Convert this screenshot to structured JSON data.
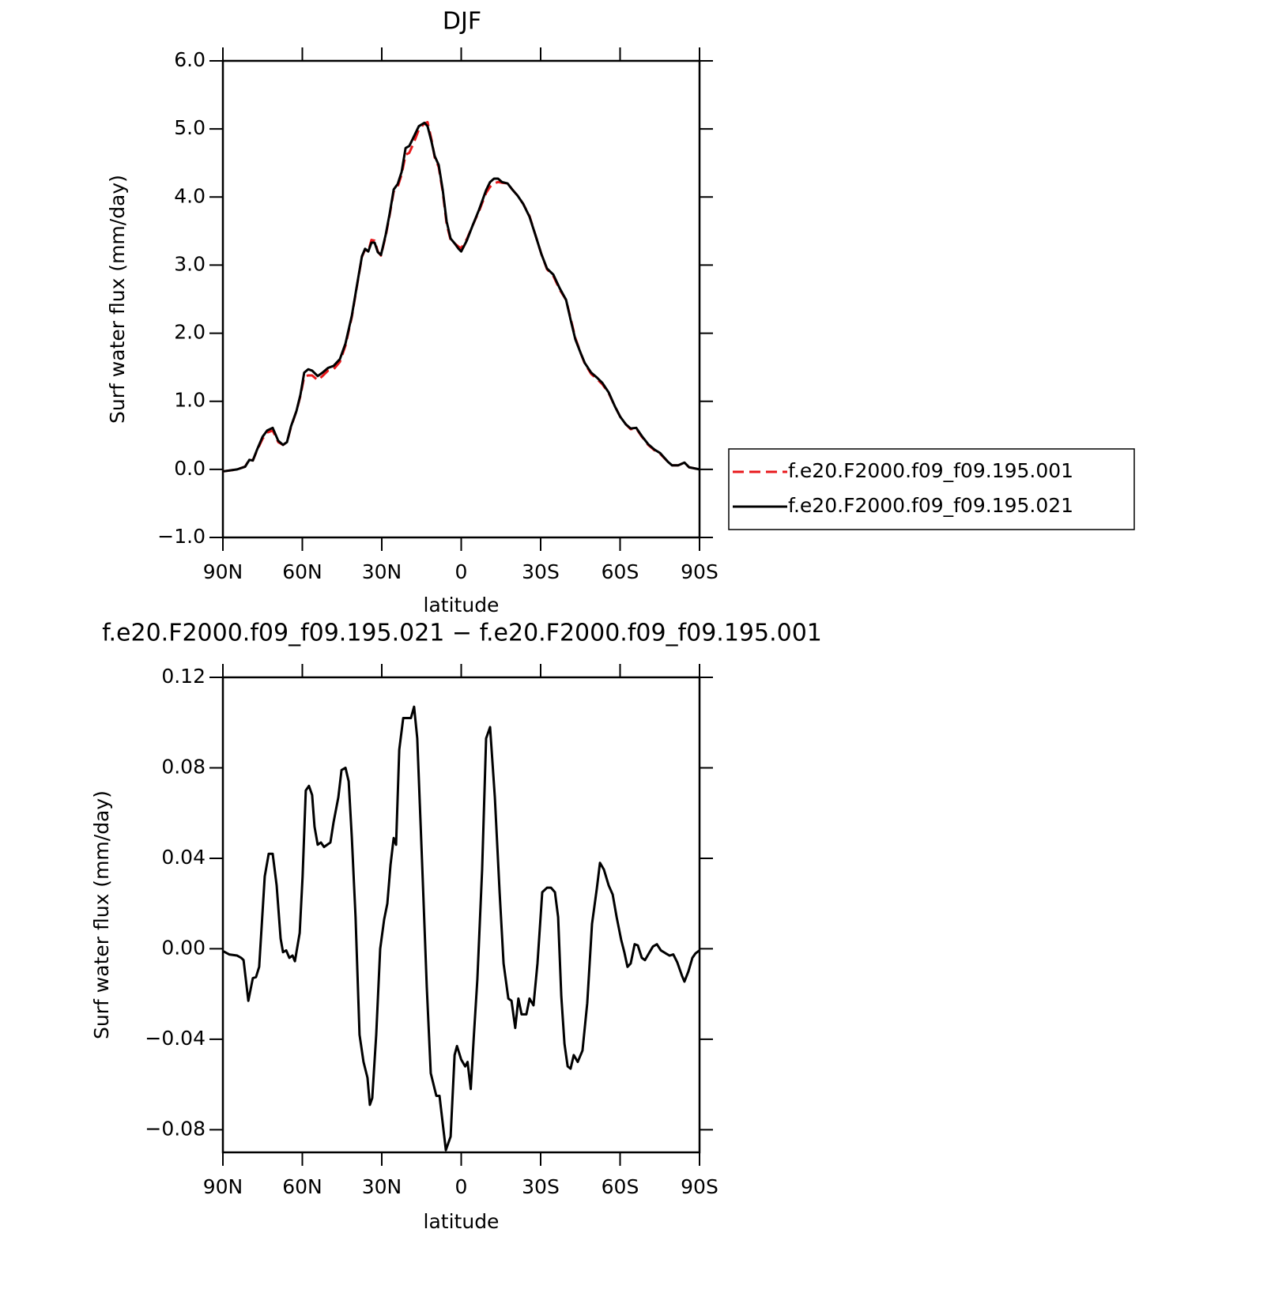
{
  "chart_data": [
    {
      "type": "line",
      "title": "DJF",
      "xlabel": "latitude",
      "ylabel": "Surf water flux (mm/day)",
      "xlim": [
        90,
        -90
      ],
      "xticks": [
        {
          "value": 90,
          "label": "90N"
        },
        {
          "value": 60,
          "label": "60N"
        },
        {
          "value": 30,
          "label": "30N"
        },
        0,
        {
          "value": -30,
          "label": "30S"
        },
        {
          "value": -60,
          "label": "60S"
        },
        {
          "value": -90,
          "label": "90S"
        }
      ],
      "ylim": [
        -1.0,
        6.0
      ],
      "yticks": [
        {
          "value": -1.0,
          "label": "−1.0"
        },
        {
          "value": 0.0,
          "label": "0.0"
        },
        {
          "value": 1.0,
          "label": "1.0"
        },
        {
          "value": 2.0,
          "label": "2.0"
        },
        {
          "value": 3.0,
          "label": "3.0"
        },
        {
          "value": 4.0,
          "label": "4.0"
        },
        {
          "value": 5.0,
          "label": "5.0"
        },
        {
          "value": 6.0,
          "label": "6.0"
        }
      ],
      "legend": "outside-right",
      "x": [
        90,
        84.6,
        81.6,
        80,
        78.7,
        77.2,
        75,
        73.3,
        71.2,
        69.1,
        67.3,
        65.8,
        64.3,
        62.2,
        60.7,
        59.3,
        57.8,
        56.3,
        54.2,
        52.4,
        50.3,
        48.2,
        45.8,
        43.7,
        41.3,
        39.3,
        37.5,
        36.3,
        35.1,
        33.9,
        32.7,
        31.5,
        30.3,
        28.5,
        27,
        25.5,
        24,
        22.5,
        21,
        19.6,
        18.1,
        16,
        13.9,
        12.7,
        11.2,
        10,
        8.5,
        7,
        5.5,
        4,
        2.5,
        1,
        0,
        -2.1,
        -4.3,
        -6.7,
        -9.4,
        -10.9,
        -12.4,
        -13.9,
        -15.4,
        -17.5,
        -19.3,
        -21.3,
        -23.4,
        -25.8,
        -28.2,
        -30.3,
        -32.4,
        -34.8,
        -37.2,
        -39.6,
        -41.3,
        -43.1,
        -45.2,
        -46.7,
        -49.1,
        -51.2,
        -53.3,
        -55.7,
        -58.1,
        -60.1,
        -62.2,
        -64,
        -66.1,
        -68.2,
        -70.6,
        -73,
        -75.1,
        -78.1,
        -79.6,
        -82,
        -84.3,
        -86.1,
        -90
      ],
      "series": [
        {
          "name": "f.e20.F2000.f09_f09.195.001",
          "color": "#e8191c",
          "linestyle": "dashed",
          "values": [
            -0.03,
            0.0,
            0.04,
            0.15,
            0.13,
            0.27,
            0.45,
            0.54,
            0.57,
            0.4,
            0.36,
            0.4,
            0.62,
            0.86,
            1.08,
            1.36,
            1.38,
            1.38,
            1.31,
            1.37,
            1.45,
            1.47,
            1.58,
            1.82,
            2.24,
            2.71,
            3.12,
            3.23,
            3.2,
            3.37,
            3.36,
            3.2,
            3.14,
            3.43,
            3.74,
            4.08,
            4.15,
            4.33,
            4.62,
            4.65,
            4.78,
            4.99,
            5.08,
            5.1,
            4.84,
            4.58,
            4.44,
            4.08,
            3.6,
            3.37,
            3.32,
            3.27,
            3.25,
            3.38,
            3.58,
            3.79,
            4.06,
            4.15,
            4.2,
            4.22,
            4.21,
            4.2,
            4.11,
            4.02,
            3.9,
            3.72,
            3.42,
            3.16,
            2.94,
            2.84,
            2.64,
            2.49,
            2.22,
            1.93,
            1.7,
            1.55,
            1.4,
            1.33,
            1.25,
            1.12,
            0.92,
            0.77,
            0.66,
            0.59,
            0.6,
            0.48,
            0.36,
            0.28,
            0.23,
            0.11,
            0.06,
            0.06,
            0.1,
            0.03,
            0.0
          ]
        },
        {
          "name": "f.e20.F2000.f09_f09.195.021",
          "color": "#000000",
          "linestyle": "solid",
          "values": [
            -0.03,
            0.0,
            0.04,
            0.14,
            0.13,
            0.28,
            0.48,
            0.57,
            0.61,
            0.42,
            0.36,
            0.4,
            0.63,
            0.86,
            1.1,
            1.42,
            1.47,
            1.45,
            1.37,
            1.42,
            1.49,
            1.52,
            1.62,
            1.85,
            2.26,
            2.72,
            3.13,
            3.24,
            3.2,
            3.33,
            3.33,
            3.19,
            3.15,
            3.45,
            3.76,
            4.11,
            4.19,
            4.37,
            4.72,
            4.75,
            4.87,
            5.04,
            5.09,
            5.04,
            4.81,
            4.6,
            4.47,
            4.11,
            3.64,
            3.39,
            3.32,
            3.24,
            3.2,
            3.36,
            3.58,
            3.81,
            4.1,
            4.22,
            4.27,
            4.27,
            4.22,
            4.2,
            4.11,
            4.02,
            3.9,
            3.71,
            3.42,
            3.16,
            2.95,
            2.86,
            2.66,
            2.49,
            2.2,
            1.91,
            1.7,
            1.56,
            1.42,
            1.35,
            1.27,
            1.13,
            0.92,
            0.77,
            0.66,
            0.6,
            0.61,
            0.49,
            0.37,
            0.29,
            0.24,
            0.11,
            0.06,
            0.06,
            0.1,
            0.03,
            0.0
          ]
        }
      ]
    },
    {
      "type": "line",
      "title": "f.e20.F2000.f09_f09.195.021 − f.e20.F2000.f09_f09.195.001",
      "xlabel": "latitude",
      "ylabel": "Surf water flux (mm/day)",
      "xlim": [
        90,
        -90
      ],
      "xticks": [
        {
          "value": 90,
          "label": "90N"
        },
        {
          "value": 60,
          "label": "60N"
        },
        {
          "value": 30,
          "label": "30N"
        },
        0,
        {
          "value": -30,
          "label": "30S"
        },
        {
          "value": -60,
          "label": "60S"
        },
        {
          "value": -90,
          "label": "90S"
        }
      ],
      "ylim": [
        -0.09,
        0.12
      ],
      "yticks": [
        {
          "value": -0.08,
          "label": "−0.08"
        },
        {
          "value": -0.04,
          "label": "−0.04"
        },
        {
          "value": 0.0,
          "label": "0.00"
        },
        {
          "value": 0.04,
          "label": "0.04"
        },
        {
          "value": 0.08,
          "label": "0.08"
        },
        {
          "value": 0.12,
          "label": "0.12"
        }
      ],
      "x": [
        90,
        87.6,
        84.6,
        83.1,
        82.2,
        80.4,
        78.7,
        77.5,
        76.3,
        74.2,
        72.7,
        71.2,
        69.7,
        68.2,
        67.3,
        66.1,
        64.9,
        63.7,
        62.8,
        61,
        59.9,
        58.7,
        57.5,
        56.3,
        55.4,
        54.2,
        53,
        51.8,
        50.6,
        49.4,
        48.2,
        46.4,
        45.2,
        43.7,
        42.5,
        41.3,
        39.9,
        38.4,
        36.9,
        35.4,
        34.5,
        33.6,
        32.1,
        30.6,
        29.1,
        27.9,
        26.7,
        25.5,
        24.6,
        23.4,
        21.9,
        20.4,
        19,
        17.8,
        16.6,
        14.8,
        13,
        11.5,
        9.4,
        8.2,
        6.4,
        5.8,
        4,
        2.5,
        1.6,
        0,
        -1.5,
        -2.4,
        -3.6,
        -4.8,
        -6.1,
        -7.9,
        -9.4,
        -10.9,
        -12.7,
        -14.5,
        -16,
        -17.8,
        -19,
        -20.4,
        -21.6,
        -22.8,
        -24.6,
        -25.8,
        -27.3,
        -28.8,
        -30.6,
        -32.4,
        -33.9,
        -35.4,
        -36.6,
        -37.8,
        -39,
        -40.2,
        -41.3,
        -42.5,
        -44,
        -45.8,
        -47.6,
        -49.4,
        -51.2,
        -52.4,
        -53.9,
        -55.7,
        -57.2,
        -58.7,
        -60.4,
        -61.6,
        -62.8,
        -64,
        -65.5,
        -66.7,
        -68.2,
        -69.4,
        -70.9,
        -72.4,
        -73.9,
        -75.4,
        -77.2,
        -78.7,
        -80.1,
        -81.6,
        -83.4,
        -84.3,
        -85.8,
        -87.3,
        -88.5,
        -90
      ],
      "series": [
        {
          "color": "#000000",
          "linestyle": "solid",
          "values": [
            -0.001,
            -0.0025,
            -0.003,
            -0.004,
            -0.005,
            -0.023,
            -0.013,
            -0.0125,
            -0.008,
            0.032,
            0.042,
            0.042,
            0.028,
            0.0045,
            -0.0015,
            -0.0007,
            -0.004,
            -0.003,
            -0.0055,
            0.007,
            0.032,
            0.07,
            0.072,
            0.068,
            0.054,
            0.046,
            0.047,
            0.045,
            0.046,
            0.047,
            0.056,
            0.067,
            0.079,
            0.08,
            0.074,
            0.049,
            0.014,
            -0.038,
            -0.05,
            -0.057,
            -0.069,
            -0.066,
            -0.038,
            0.0,
            0.013,
            0.02,
            0.037,
            0.049,
            0.046,
            0.088,
            0.102,
            0.102,
            0.102,
            0.107,
            0.093,
            0.039,
            -0.017,
            -0.055,
            -0.065,
            -0.065,
            -0.083,
            -0.089,
            -0.083,
            -0.047,
            -0.043,
            -0.049,
            -0.052,
            -0.05,
            -0.062,
            -0.038,
            -0.0135,
            0.035,
            0.093,
            0.098,
            0.067,
            0.025,
            -0.0065,
            -0.022,
            -0.023,
            -0.035,
            -0.022,
            -0.029,
            -0.029,
            -0.022,
            -0.025,
            -0.0065,
            0.025,
            0.027,
            0.027,
            0.025,
            0.014,
            -0.021,
            -0.042,
            -0.052,
            -0.053,
            -0.047,
            -0.05,
            -0.045,
            -0.024,
            0.011,
            0.0265,
            0.038,
            0.035,
            0.028,
            0.024,
            0.014,
            0.004,
            -0.0015,
            -0.008,
            -0.0065,
            0.002,
            0.0015,
            -0.004,
            -0.005,
            -0.002,
            0.001,
            0.002,
            -0.0007,
            -0.002,
            -0.003,
            -0.0025,
            -0.006,
            -0.012,
            -0.0145,
            -0.01,
            -0.004,
            -0.002,
            -0.0007
          ]
        }
      ]
    }
  ]
}
